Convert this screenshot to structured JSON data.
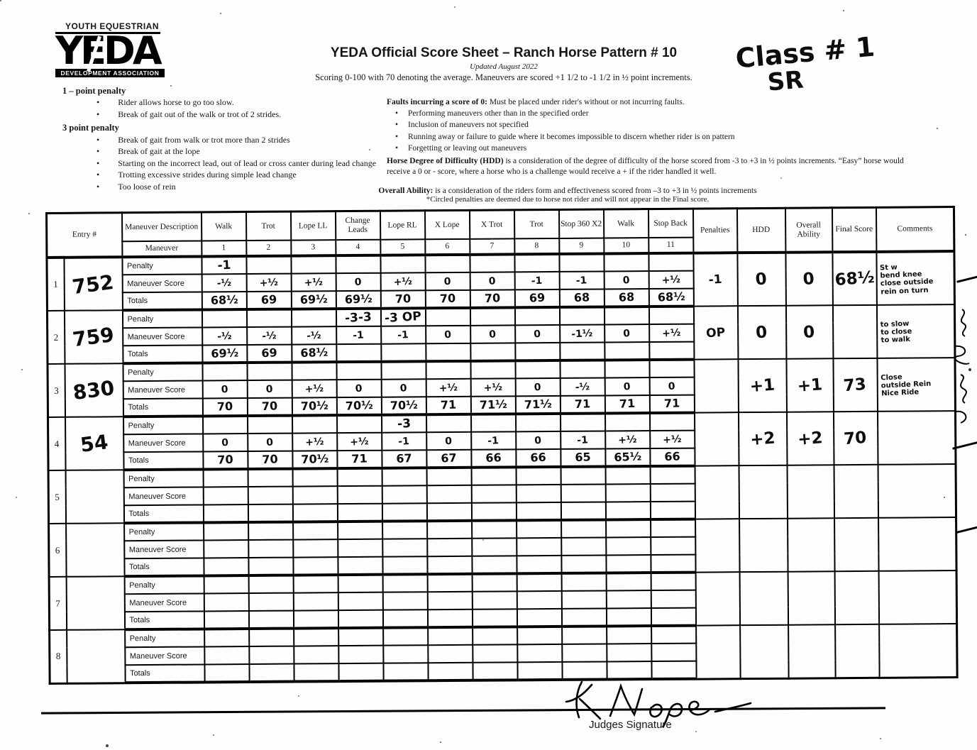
{
  "page": {
    "logo_top": "YOUTH EQUESTRIAN",
    "logo_main": "YEDA",
    "logo_bottom": "DEVELOPMENT ASSOCIATION",
    "title": "YEDA Official Score Sheet – Ranch Horse Pattern # 10",
    "subtitle": "Updated August 2022",
    "scoring_note": "Scoring 0-100 with 70 denoting the average. Maneuvers are scored +1 1/2 to -1 1/2 in ½ point increments.",
    "class_label": "Class # 1",
    "division_label": "SR"
  },
  "penalty_rules": {
    "one_point_title": "1 – point penalty",
    "one_point_items": [
      "Rider allows horse to go too slow.",
      "Break of gait out of the walk or trot of 2 strides."
    ],
    "three_point_title": "3   point penalty",
    "three_point_items": [
      "Break of gait from walk or trot more than 2 strides",
      "Break of gait at the lope",
      "Starting on the incorrect lead, out of lead or cross canter during lead change",
      "Trotting excessive strides during simple lead change",
      "Too loose of rein"
    ]
  },
  "faults": {
    "title_bold": "Faults incurring a score of 0:",
    "title_rest": "  Must be placed under rider's without or not incurring faults.",
    "items": [
      "Performing maneuvers other than in the specified order",
      "Inclusion of maneuvers not specified",
      "Running away or failure to guide where it becomes impossible to discern whether rider is on pattern",
      "Forgetting or leaving out maneuvers"
    ],
    "hdd_bold": "Horse Degree of Difficulty (HDD)",
    "hdd_rest": " is a consideration of the degree of difficulty of the horse scored from -3 to +3 in ½ points increments. “Easy” horse would receive a 0 or - score, where a horse who is a challenge would receive a + if the rider handled it well.",
    "overall_bold": "Overall Ability:",
    "overall_rest": " is a consideration of the riders form and effectiveness scored from –3 to +3 in ½ points increments",
    "circled_note": "*Circled penalties are deemed due to horse not rider and will not appear in the Final score."
  },
  "table": {
    "headers": {
      "entry": "Entry #",
      "maneuver_description": "Maneuver Description",
      "maneuver": "Maneuver",
      "maneuvers": [
        {
          "name": "Walk",
          "num": "1"
        },
        {
          "name": "Trot",
          "num": "2"
        },
        {
          "name": "Lope LL",
          "num": "3"
        },
        {
          "name": "Change Leads",
          "num": "4"
        },
        {
          "name": "Lope RL",
          "num": "5"
        },
        {
          "name": "X Lope",
          "num": "6"
        },
        {
          "name": "X Trot",
          "num": "7"
        },
        {
          "name": "Trot",
          "num": "8"
        },
        {
          "name": "Stop 360 X2",
          "num": "9"
        },
        {
          "name": "Walk",
          "num": "10"
        },
        {
          "name": "Stop Back",
          "num": "11"
        }
      ],
      "penalties": "Penalties",
      "hdd": "HDD",
      "overall_ability": "Overall Ability",
      "final_score": "Final Score",
      "comments": "Comments"
    },
    "row_labels": [
      "Penalty",
      "Maneuver Score",
      "Totals"
    ],
    "entries": [
      {
        "index": "1",
        "entry_no": "752",
        "penalty": [
          "-1",
          "",
          "",
          "",
          "",
          "",
          "",
          "",
          "",
          "",
          ""
        ],
        "scores": [
          "-½",
          "+½",
          "+½",
          "0",
          "+½",
          "0",
          "0",
          "-1",
          "-1",
          "0",
          "+½"
        ],
        "totals": [
          "68½",
          "69",
          "69½",
          "69½",
          "70",
          "70",
          "70",
          "69",
          "68",
          "68",
          "68½"
        ],
        "penalties": "-1",
        "hdd": "0",
        "overall": "0",
        "final": "68½",
        "comments": [
          "St w",
          "bend knee",
          "close outside",
          "rein on turn"
        ]
      },
      {
        "index": "2",
        "entry_no": "759",
        "penalty": [
          "",
          "",
          "",
          "-3-3",
          "-3 OP",
          "",
          "",
          "",
          "",
          "",
          ""
        ],
        "scores": [
          "-½",
          "-½",
          "-½",
          "-1",
          "-1",
          "0",
          "0",
          "0",
          "-1½",
          "0",
          "+½"
        ],
        "totals": [
          "69½",
          "69",
          "68½",
          "",
          "",
          "",
          "",
          "",
          "",
          "",
          ""
        ],
        "penalties": "OP",
        "hdd": "0",
        "overall": "0",
        "final": "",
        "comments": [
          "to slow",
          "to close",
          "to walk"
        ]
      },
      {
        "index": "3",
        "entry_no": "830",
        "penalty": [
          "",
          "",
          "",
          "",
          "",
          "",
          "",
          "",
          "",
          "",
          ""
        ],
        "scores": [
          "0",
          "0",
          "+½",
          "0",
          "0",
          "+½",
          "+½",
          "0",
          "-½",
          "0",
          "0"
        ],
        "totals": [
          "70",
          "70",
          "70½",
          "70½",
          "70½",
          "71",
          "71½",
          "71½",
          "71",
          "71",
          "71"
        ],
        "penalties": "",
        "hdd": "+1",
        "overall": "+1",
        "final": "73",
        "comments": [
          "Close",
          "outside Rein",
          "Nice Ride"
        ]
      },
      {
        "index": "4",
        "entry_no": "54",
        "penalty": [
          "",
          "",
          "",
          "",
          "-3",
          "",
          "",
          "",
          "",
          "",
          ""
        ],
        "scores": [
          "0",
          "0",
          "+½",
          "+½",
          "-1",
          "0",
          "-1",
          "0",
          "-1",
          "+½",
          "+½"
        ],
        "totals": [
          "70",
          "70",
          "70½",
          "71",
          "67",
          "67",
          "66",
          "66",
          "65",
          "65½",
          "66"
        ],
        "penalties": "",
        "hdd": "+2",
        "overall": "+2",
        "final": "70",
        "comments": []
      },
      {
        "index": "5",
        "entry_no": "",
        "penalty": [
          "",
          "",
          "",
          "",
          "",
          "",
          "",
          "",
          "",
          "",
          ""
        ],
        "scores": [
          "",
          "",
          "",
          "",
          "",
          "",
          "",
          "",
          "",
          "",
          ""
        ],
        "totals": [
          "",
          "",
          "",
          "",
          "",
          "",
          "",
          "",
          "",
          "",
          ""
        ],
        "penalties": "",
        "hdd": "",
        "overall": "",
        "final": "",
        "comments": []
      },
      {
        "index": "6",
        "entry_no": "",
        "penalty": [
          "",
          "",
          "",
          "",
          "",
          "",
          "",
          "",
          "",
          "",
          ""
        ],
        "scores": [
          "",
          "",
          "",
          "",
          "",
          "",
          "",
          "",
          "",
          "",
          ""
        ],
        "totals": [
          "",
          "",
          "",
          "",
          "",
          "",
          "",
          "",
          "",
          "",
          ""
        ],
        "penalties": "",
        "hdd": "",
        "overall": "",
        "final": "",
        "comments": []
      },
      {
        "index": "7",
        "entry_no": "",
        "penalty": [
          "",
          "",
          "",
          "",
          "",
          "",
          "",
          "",
          "",
          "",
          ""
        ],
        "scores": [
          "",
          "",
          "",
          "",
          "",
          "",
          "",
          "",
          "",
          "",
          ""
        ],
        "totals": [
          "",
          "",
          "",
          "",
          "",
          "",
          "",
          "",
          "",
          "",
          ""
        ],
        "penalties": "",
        "hdd": "",
        "overall": "",
        "final": "",
        "comments": []
      },
      {
        "index": "8",
        "entry_no": "",
        "penalty": [
          "",
          "",
          "",
          "",
          "",
          "",
          "",
          "",
          "",
          "",
          ""
        ],
        "scores": [
          "",
          "",
          "",
          "",
          "",
          "",
          "",
          "",
          "",
          "",
          ""
        ],
        "totals": [
          "",
          "",
          "",
          "",
          "",
          "",
          "",
          "",
          "",
          "",
          ""
        ],
        "penalties": "",
        "hdd": "",
        "overall": "",
        "final": "",
        "comments": []
      }
    ]
  },
  "footer": {
    "signature": "K Nope",
    "signature_label": "Judges Signature"
  }
}
